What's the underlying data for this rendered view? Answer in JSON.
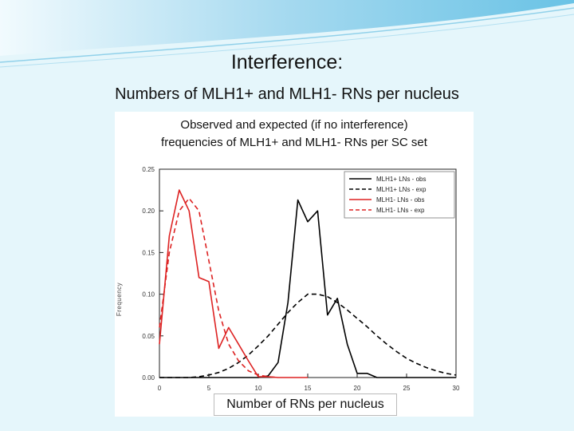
{
  "slide": {
    "title": "Interference:",
    "subtitle": "Numbers of MLH1+ and MLH1- RNs per nucleus"
  },
  "figure": {
    "caption_line1": "Observed and expected (if no interference)",
    "caption_line2": "frequencies of MLH1+ and MLH1- RNs per SC set",
    "ylabel": "Frequency"
  },
  "chart_data": {
    "type": "line",
    "xlabel": "Number of RNs per nucleus",
    "ylabel": "Frequency",
    "xlim": [
      0,
      30
    ],
    "ylim": [
      0,
      0.25
    ],
    "xticks": [
      0,
      5,
      10,
      15,
      20,
      25,
      30
    ],
    "yticks": [
      "0.00",
      "0.05",
      "0.10",
      "0.15",
      "0.20",
      "0.25"
    ],
    "grid": false,
    "legend_position": "top-right",
    "series": [
      {
        "name": "MLH1+ LNs - obs",
        "color": "#000000",
        "dash": "solid",
        "x": [
          0,
          10,
          11,
          12,
          13,
          14,
          15,
          16,
          17,
          18,
          19,
          20,
          21,
          22,
          23,
          30
        ],
        "y": [
          0,
          0,
          0.002,
          0.018,
          0.09,
          0.213,
          0.187,
          0.2,
          0.075,
          0.095,
          0.04,
          0.005,
          0.005,
          0,
          0,
          0
        ]
      },
      {
        "name": "MLH1+ LNs - exp",
        "color": "#000000",
        "dash": "dashed",
        "x": [
          0,
          3,
          4,
          5,
          6,
          7,
          8,
          9,
          10,
          11,
          12,
          13,
          14,
          15,
          16,
          17,
          18,
          19,
          20,
          21,
          22,
          23,
          24,
          25,
          26,
          27,
          28,
          29,
          30
        ],
        "y": [
          0,
          0,
          0.001,
          0.003,
          0.006,
          0.011,
          0.018,
          0.027,
          0.038,
          0.05,
          0.064,
          0.078,
          0.09,
          0.1,
          0.1,
          0.097,
          0.09,
          0.081,
          0.071,
          0.061,
          0.05,
          0.04,
          0.031,
          0.023,
          0.017,
          0.012,
          0.008,
          0.005,
          0.003
        ]
      },
      {
        "name": "MLH1- LNs - obs",
        "color": "#dd2222",
        "dash": "solid",
        "x": [
          0,
          1,
          2,
          3,
          4,
          5,
          6,
          7,
          8,
          9,
          10,
          11,
          12,
          13,
          14,
          15
        ],
        "y": [
          0.04,
          0.17,
          0.225,
          0.2,
          0.12,
          0.115,
          0.035,
          0.06,
          0.04,
          0.02,
          0.001,
          0.001,
          0,
          0,
          0,
          0
        ]
      },
      {
        "name": "MLH1- LNs - exp",
        "color": "#dd2222",
        "dash": "dashed",
        "x": [
          0,
          1,
          2,
          3,
          4,
          5,
          6,
          7,
          8,
          9,
          10,
          11,
          12
        ],
        "y": [
          0.06,
          0.15,
          0.2,
          0.215,
          0.2,
          0.14,
          0.08,
          0.04,
          0.02,
          0.008,
          0.003,
          0.001,
          0
        ]
      }
    ]
  }
}
